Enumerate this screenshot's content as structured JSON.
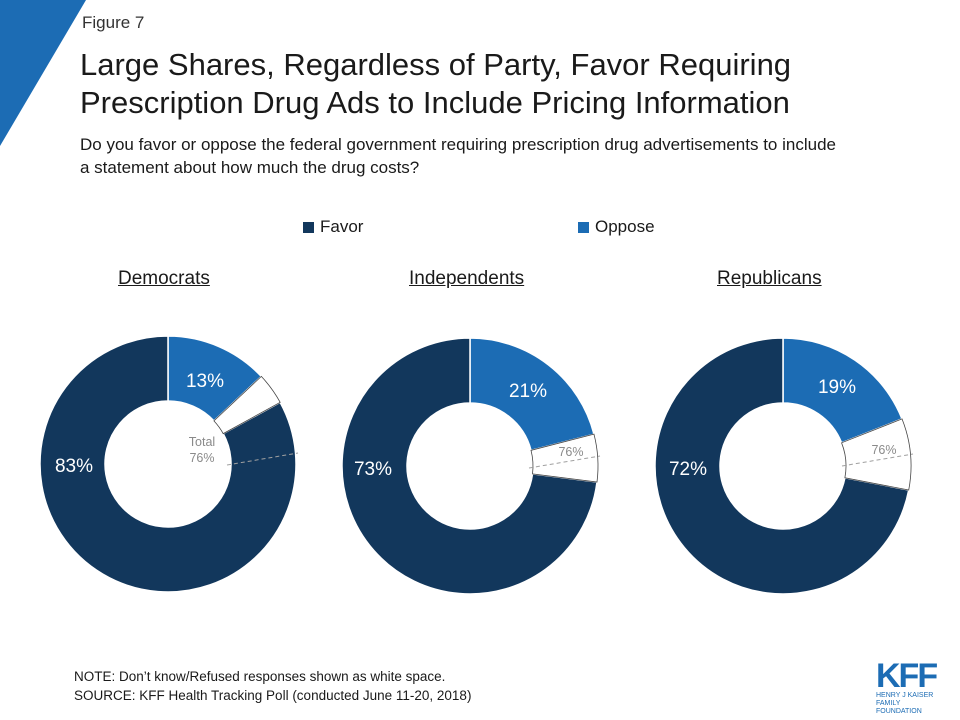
{
  "figure_label": "Figure 7",
  "title_line1": "Large Shares, Regardless of Party, Favor Requiring",
  "title_line2": "Prescription Drug Ads to Include Pricing Information",
  "subtitle_line1": "Do you favor or oppose the federal government requiring prescription drug advertisements to include",
  "subtitle_line2": "a statement about how much the drug costs?",
  "colors": {
    "favor": "#12375c",
    "oppose": "#1c6cb4",
    "accent": "#1c6cb4"
  },
  "chart_data": [
    {
      "type": "pie",
      "title": "Democrats",
      "series": [
        {
          "name": "Favor",
          "value": 83,
          "label": "83%"
        },
        {
          "name": "Oppose",
          "value": 13,
          "label": "13%"
        }
      ],
      "annotation": "Total\n76%"
    },
    {
      "type": "pie",
      "title": "Independents",
      "series": [
        {
          "name": "Favor",
          "value": 73,
          "label": "73%"
        },
        {
          "name": "Oppose",
          "value": 21,
          "label": "21%"
        }
      ],
      "annotation": "76%"
    },
    {
      "type": "pie",
      "title": "Republicans",
      "series": [
        {
          "name": "Favor",
          "value": 72,
          "label": "72%"
        },
        {
          "name": "Oppose",
          "value": 19,
          "label": "19%"
        }
      ],
      "annotation": "76%"
    }
  ],
  "legend": [
    {
      "label": "Favor",
      "color": "#12375c"
    },
    {
      "label": "Oppose",
      "color": "#1c6cb4"
    }
  ],
  "note_line1": "NOTE: Don’t know/Refused responses shown as white space.",
  "note_line2": "SOURCE: KFF Health Tracking Poll (conducted June 11-20, 2018)",
  "logo": {
    "mark": "KFF",
    "sub_line1": "HENRY J KAISER",
    "sub_line2": "FAMILY FOUNDATION"
  }
}
